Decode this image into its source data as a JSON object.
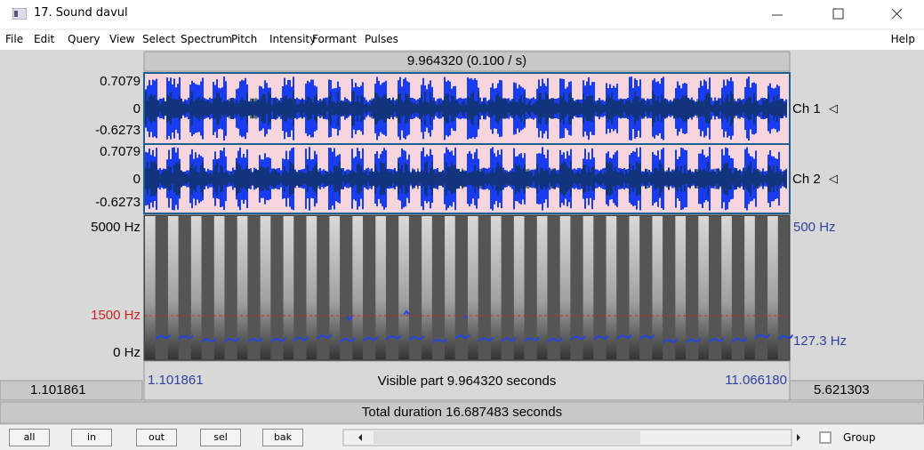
{
  "window": {
    "title": "17. Sound davul"
  },
  "menu": {
    "items": [
      "File",
      "Edit",
      "Query",
      "View",
      "Select",
      "Spectrum",
      "Pitch",
      "Intensity",
      "Formant",
      "Pulses"
    ],
    "help": "Help"
  },
  "header": "9.964320 (0.100 / s)",
  "waveform": {
    "channels": [
      {
        "max": "0.7079",
        "zero": "0",
        "min": "-0.6273",
        "label": "Ch 1"
      },
      {
        "max": "0.7079",
        "zero": "0",
        "min": "-0.6273",
        "label": "Ch 2"
      }
    ]
  },
  "spectrogram": {
    "top": "5000 Hz",
    "cursor": "1500 Hz",
    "bottom": "0 Hz",
    "pitch_top": "500 Hz",
    "pitch_bottom": "127.3 Hz"
  },
  "selection": {
    "start": "1.101861",
    "visible": "Visible part 9.964320 seconds",
    "end": "11.066180",
    "before": "1.101861",
    "after": "5.621303"
  },
  "total": "Total duration 16.687483 seconds",
  "buttons": [
    "all",
    "in",
    "out",
    "sel",
    "bak"
  ],
  "group": "Group"
}
